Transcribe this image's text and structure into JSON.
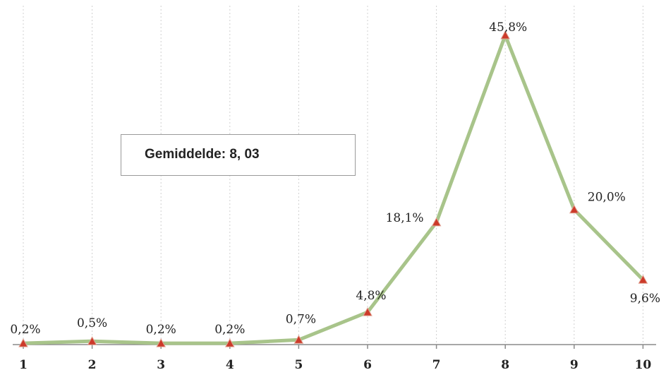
{
  "chart_data": {
    "type": "line",
    "categories": [
      "1",
      "2",
      "3",
      "4",
      "5",
      "6",
      "7",
      "8",
      "9",
      "10"
    ],
    "series": [
      {
        "values": [
          0.2,
          0.5,
          0.2,
          0.2,
          0.7,
          4.8,
          18.1,
          45.8,
          20.0,
          9.6
        ],
        "data_labels": [
          "0,2%",
          "0,5%",
          "0,2%",
          "0,2%",
          "0,7%",
          "4,8%",
          "18,1%",
          "45,8%",
          "20,0%",
          "9,6%"
        ],
        "color": "#a8c48a",
        "marker_color": "#cc3a2a"
      }
    ],
    "ylim": [
      0,
      50
    ],
    "grid": "vertical-dotted",
    "annotation": "Gemiddelde: 8, 03"
  }
}
